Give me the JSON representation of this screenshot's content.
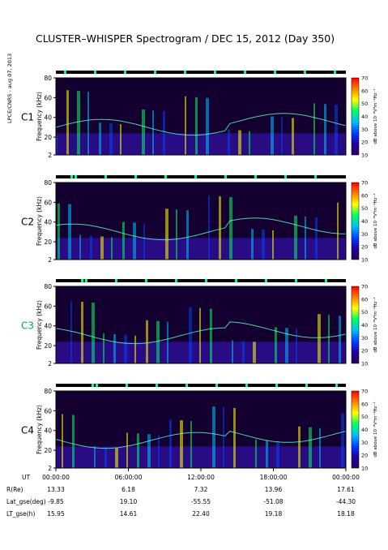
{
  "title": "CLUSTER–WHISPER Spectrogram / DEC 15, 2012 (Day 350)",
  "side_note": "LPCE/CNRS - aug 07, 2013",
  "chart_data": {
    "type": "heatmap",
    "title": "CLUSTER–WHISPER Spectrogram / DEC 15, 2012 (Day 350)",
    "ylabel": "Frequency (kHz)",
    "ylim": [
      2,
      80
    ],
    "yticks": [
      "80",
      "60",
      "40",
      "20",
      "2"
    ],
    "colorbar": {
      "label": "dB above 10⁻⁸V²m⁻²Hz⁻¹",
      "ticks": [
        "70",
        "60",
        "50",
        "40",
        "30",
        "20",
        "10"
      ],
      "range": [
        10,
        70
      ],
      "colors": [
        "#2a0060",
        "#2000a0",
        "#0040ff",
        "#00c0ff",
        "#00ff60",
        "#ffff00",
        "#ff8000",
        "#ff0000"
      ]
    },
    "panels": [
      {
        "name": "C1",
        "color": "#000000",
        "wave": "smooth"
      },
      {
        "name": "C2",
        "color": "#000000",
        "wave": "smooth"
      },
      {
        "name": "C3",
        "color": "#00aa55",
        "wave": "smooth"
      },
      {
        "name": "C4",
        "color": "#000000",
        "wave": "smooth"
      }
    ],
    "time_axis": {
      "label": "UT",
      "ticks": [
        "00:00:00",
        "06:00:00",
        "12:00:00",
        "18:00:00",
        "00:00:00"
      ],
      "rows": [
        {
          "label": "R(Re)",
          "values": [
            "13.33",
            "6.18",
            "7.32",
            "13.96",
            "17.61"
          ]
        },
        {
          "label": "Lat_gse(deg)",
          "values": [
            "-9.85",
            "19.10",
            "-55.55",
            "-51.08",
            "-44.30"
          ]
        },
        {
          "label": "LT_gse(h)",
          "values": [
            "15.95",
            "14.61",
            "22.40",
            "19.18",
            "18.18"
          ]
        }
      ]
    }
  }
}
